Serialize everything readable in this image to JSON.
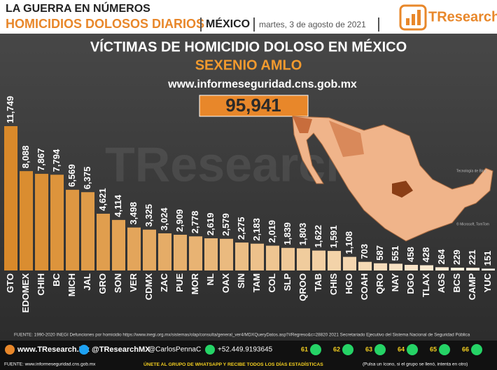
{
  "header": {
    "kicker": "LA GUERRA EN NÚMEROS",
    "topic": "HOMICIDIOS DOLOSOS DIARIOS",
    "country": "MÉXICO",
    "date": "martes, 3 de agosto de 2021",
    "brand": "TResearch"
  },
  "chart_data": {
    "type": "bar",
    "title": "VÍCTIMAS DE HOMICIDIO DOLOSO EN MÉXICO",
    "subtitle": "SEXENIO AMLO",
    "source_url": "www.informeseguridad.cns.gob.mx",
    "total": 95941,
    "total_label": "95,941",
    "map_credit": "Tecnología de Bing",
    "map_credit_2": "© Microsoft, TomTom",
    "categories": [
      "GTO",
      "EDOMEX",
      "CHIH",
      "BC",
      "MICH",
      "JAL",
      "GRO",
      "SON",
      "VER",
      "CDMX",
      "ZAC",
      "PUE",
      "MOR",
      "NL",
      "OAX",
      "SIN",
      "TAM",
      "COL",
      "SLP",
      "QROO",
      "TAB",
      "CHIS",
      "HGO",
      "COAH",
      "QRO",
      "NAY",
      "DGO",
      "TLAX",
      "AGS",
      "BCS",
      "CAMP",
      "YUC"
    ],
    "values": [
      11749,
      8088,
      7867,
      7794,
      6569,
      6375,
      4621,
      4114,
      3498,
      3325,
      3024,
      2909,
      2778,
      2619,
      2579,
      2275,
      2183,
      2019,
      1839,
      1803,
      1622,
      1591,
      1108,
      703,
      587,
      551,
      458,
      428,
      264,
      229,
      221,
      151
    ],
    "value_labels": [
      "11,749",
      "8,088",
      "7,867",
      "7,794",
      "6,569",
      "6,375",
      "4,621",
      "4,114",
      "3,498",
      "3,325",
      "3,024",
      "2,909",
      "2,778",
      "2,619",
      "2,579",
      "2,275",
      "2,183",
      "2,019",
      "1,839",
      "1,803",
      "1,622",
      "1,591",
      "1,108",
      "703",
      "587",
      "551",
      "458",
      "428",
      "264",
      "229",
      "221",
      "151"
    ],
    "color_range": [
      "#d9892a",
      "#fff6e6"
    ]
  },
  "footer": {
    "source": "FUENTE: 1990-2020 INEGI Defunciones por homicidio https://www.inegi.org.mx/sistemas/olap/consulta/general_ver4/MDXQueryDatos.asp?#Regreso&c=28820   2021 Secretariado Ejecutivo del Sistema Nacional de Seguridad Pública",
    "web": "www.TResearch.Mx",
    "twitter": "@TResearchMX",
    "author": "@CarlosPennaC",
    "phone": "+52.449.9193645",
    "groups": [
      "61",
      "62",
      "63",
      "64",
      "65",
      "66"
    ],
    "data_source": "FUENTE: www.informeseguridad.cns.gob.mx",
    "cta": "ÚNETE AL GRUPO DE WHATSAPP Y RECIBE TODOS LOS DÍAS ESTADÍSTICAS",
    "cta_note": "(Pulsa un ícono, si el grupo se llenó, intenta en otro)"
  }
}
